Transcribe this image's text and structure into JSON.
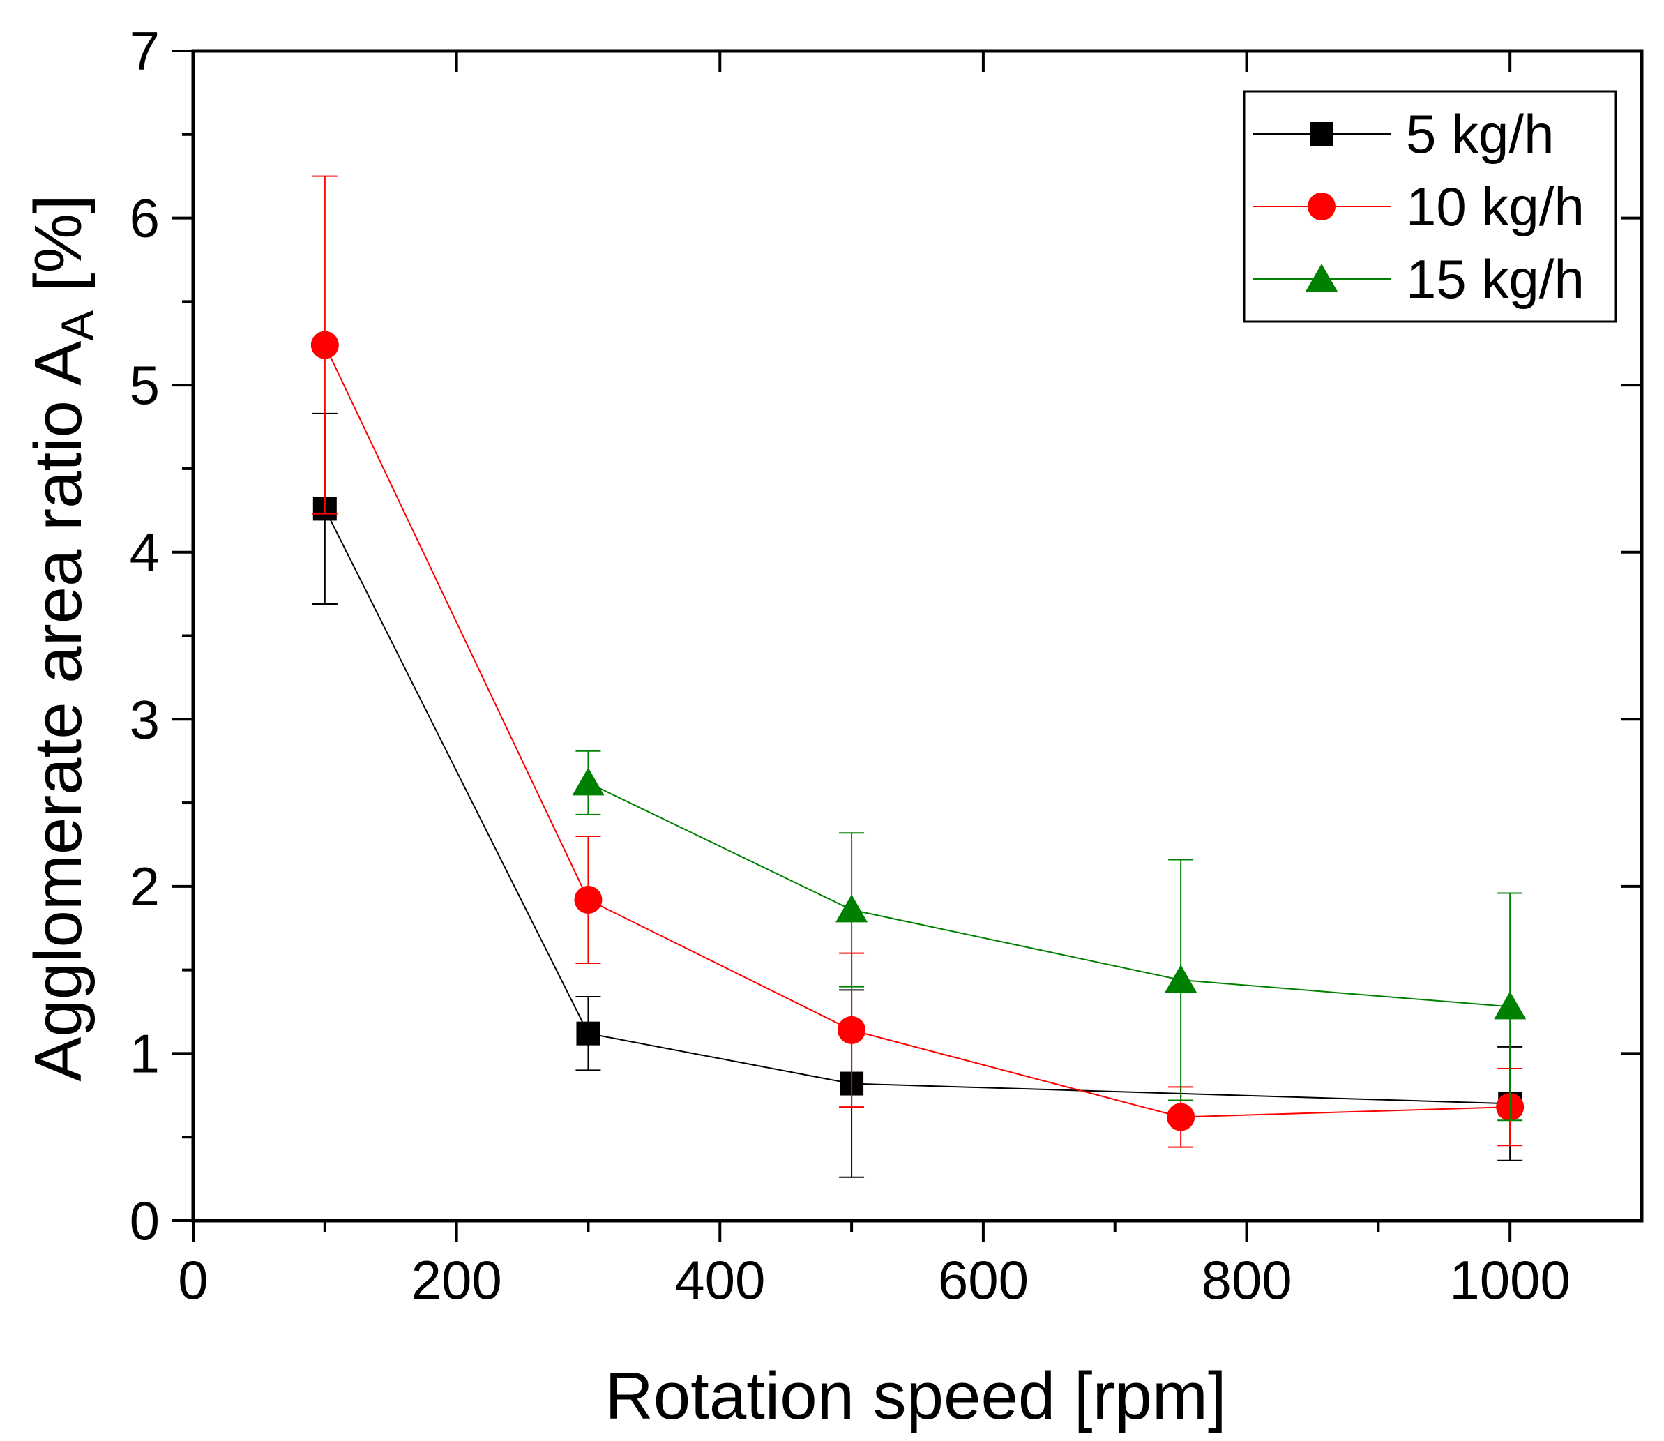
{
  "chart_data": {
    "type": "line",
    "title": "",
    "xlabel": "Rotation speed [rpm]",
    "ylabel": {
      "main": "Agglomerate area ratio A",
      "subscript": "A",
      "suffix": " [%]"
    },
    "xlim": [
      0,
      1100
    ],
    "ylim": [
      0,
      7
    ],
    "x_ticks": [
      0,
      200,
      400,
      600,
      800,
      1000
    ],
    "x_tick_labels": [
      "0",
      "200",
      "400",
      "600",
      "800",
      "1000"
    ],
    "y_ticks": [
      0,
      1,
      2,
      3,
      4,
      5,
      6,
      7
    ],
    "y_tick_labels": [
      "0",
      "1",
      "2",
      "3",
      "4",
      "5",
      "6",
      "7"
    ],
    "legend_position": "top-right",
    "series": [
      {
        "name": "5 kg/h",
        "color": "#000000",
        "marker": "square",
        "x": [
          100,
          300,
          500,
          1000
        ],
        "y": [
          4.26,
          1.12,
          0.82,
          0.7
        ],
        "err_low": [
          3.69,
          0.9,
          0.26,
          0.36
        ],
        "err_high": [
          4.83,
          1.34,
          1.38,
          1.04
        ]
      },
      {
        "name": "10 kg/h",
        "color": "#ff0000",
        "marker": "circle",
        "x": [
          100,
          300,
          500,
          750,
          1000
        ],
        "y": [
          5.24,
          1.92,
          1.14,
          0.62,
          0.68
        ],
        "err_low": [
          4.23,
          1.54,
          0.68,
          0.44,
          0.45
        ],
        "err_high": [
          6.25,
          2.3,
          1.6,
          0.8,
          0.91
        ]
      },
      {
        "name": "15 kg/h",
        "color": "#008000",
        "marker": "triangle",
        "x": [
          300,
          500,
          750,
          1000
        ],
        "y": [
          2.62,
          1.86,
          1.44,
          1.28
        ],
        "err_low": [
          2.43,
          1.4,
          0.72,
          0.6
        ],
        "err_high": [
          2.81,
          2.32,
          2.16,
          1.96
        ]
      }
    ]
  }
}
